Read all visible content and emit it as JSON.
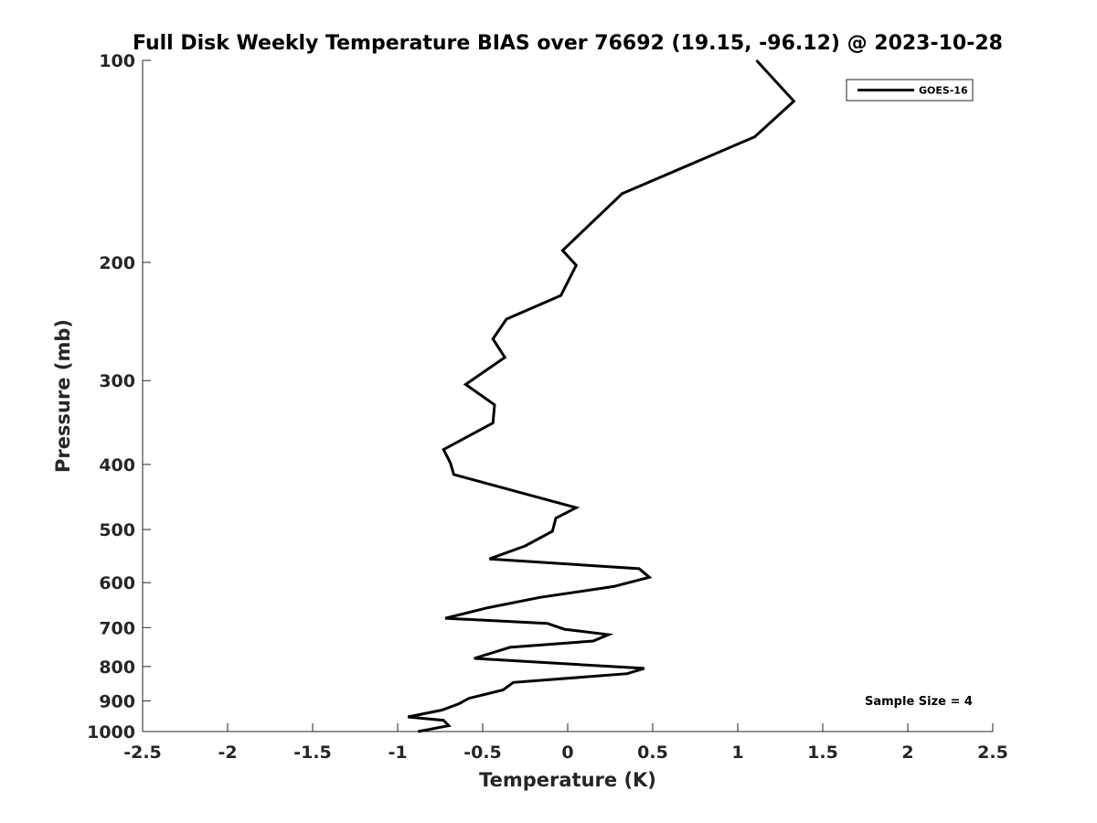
{
  "chart_data": {
    "type": "line",
    "title": "Full Disk Weekly Temperature BIAS over 76692 (19.15, -96.12) @ 2023-10-28",
    "xlabel": "Temperature (K)",
    "ylabel": "Pressure (mb)",
    "xlim": [
      -2.5,
      2.5
    ],
    "ylim": [
      1000,
      100
    ],
    "yscale": "log",
    "y_reversed": true,
    "grid": false,
    "legend_position": "top-right",
    "x_ticks": [
      -2.5,
      -2,
      -1.5,
      -1,
      -0.5,
      0,
      0.5,
      1,
      1.5,
      2,
      2.5
    ],
    "x_tick_labels": [
      "-2.5",
      "-2",
      "-1.5",
      "-1",
      "-0.5",
      "0",
      "0.5",
      "1",
      "1.5",
      "2",
      "2.5"
    ],
    "y_ticks": [
      100,
      200,
      300,
      400,
      500,
      600,
      700,
      800,
      900,
      1000
    ],
    "y_tick_labels": [
      "100",
      "200",
      "300",
      "400",
      "500",
      "600",
      "700",
      "800",
      "900",
      "1000"
    ],
    "annotation": "Sample Size = 4",
    "series": [
      {
        "name": "GOES-16",
        "color": "#000000",
        "x": [
          1.11,
          1.33,
          1.1,
          0.32,
          -0.03,
          0.05,
          -0.04,
          -0.36,
          -0.44,
          -0.37,
          -0.6,
          -0.43,
          -0.44,
          -0.73,
          -0.69,
          -0.67,
          0.05,
          -0.07,
          -0.09,
          -0.25,
          -0.46,
          0.42,
          0.48,
          0.27,
          -0.16,
          -0.47,
          -0.72,
          -0.12,
          -0.02,
          0.24,
          0.15,
          -0.34,
          -0.55,
          0.45,
          0.35,
          -0.32,
          -0.38,
          -0.58,
          -0.64,
          -0.74,
          -0.94,
          -0.73,
          -0.7,
          -0.88
        ],
        "y": [
          100,
          115,
          130,
          158,
          192,
          202,
          224,
          243,
          260,
          277,
          304,
          326,
          347,
          380,
          398,
          414,
          464,
          481,
          503,
          529,
          553,
          572,
          589,
          608,
          631,
          654,
          678,
          690,
          704,
          717,
          733,
          749,
          778,
          805,
          820,
          845,
          867,
          892,
          909,
          929,
          951,
          962,
          980,
          1000
        ]
      }
    ]
  }
}
